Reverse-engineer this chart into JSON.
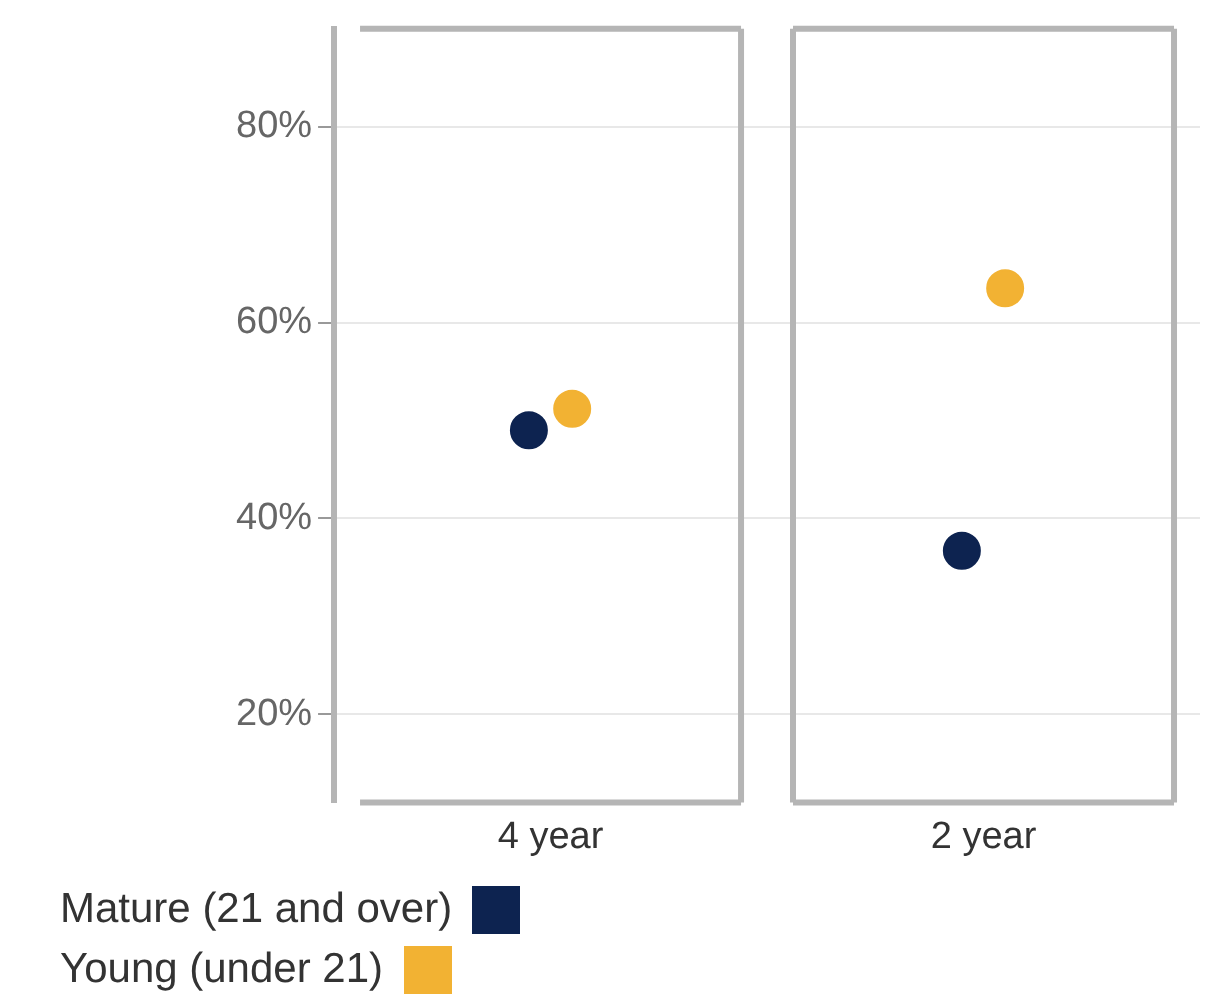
{
  "chart_data": {
    "type": "scatter",
    "categories": [
      "4 year",
      "2 year"
    ],
    "series": [
      {
        "name": "Mature (21 and over)",
        "color": "#0d2350",
        "x": [
          "4 year",
          "2 year"
        ],
        "values": [
          49,
          36.7
        ]
      },
      {
        "name": "Young (under 21)",
        "color": "#f2b233",
        "x": [
          "4 year",
          "2 year"
        ],
        "values": [
          51.2,
          63.5
        ]
      }
    ],
    "ylim": [
      11,
      90
    ],
    "yticks": [
      {
        "value": 20,
        "label": "20%"
      },
      {
        "value": 40,
        "label": "40%"
      },
      {
        "value": 60,
        "label": "60%"
      },
      {
        "value": 80,
        "label": "80%"
      }
    ],
    "grid": "y",
    "legend": "bottom left",
    "marker": "circle"
  }
}
